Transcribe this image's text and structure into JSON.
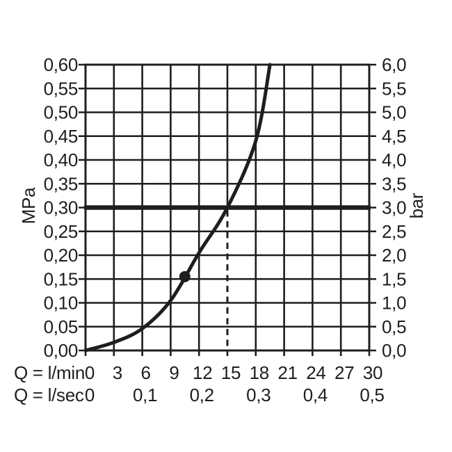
{
  "chart_data": {
    "type": "line",
    "title": "",
    "ink_color": "#1e1e1c",
    "background_color": "#ffffff",
    "grid": true,
    "legend": "none",
    "y_left": {
      "label": "MPa",
      "min": 0,
      "max": 0.6,
      "step": 0.05,
      "tick_labels_top_to_bottom": [
        "0,60",
        "0,55",
        "0,50",
        "0,45",
        "0,40",
        "0,35",
        "0,30",
        "0,25",
        "0,20",
        "0,15",
        "0,10",
        "0,05",
        "0,00"
      ]
    },
    "y_right": {
      "label": "bar",
      "min": 0,
      "max": 6,
      "step": 0.5,
      "tick_labels_top_to_bottom": [
        "6,0",
        "5,5",
        "5,0",
        "4,5",
        "4,0",
        "3,5",
        "3,0",
        "2,5",
        "2,0",
        "1,5",
        "1,0",
        "0,5",
        "0,0"
      ]
    },
    "x_lmin": {
      "label": "Q = l/min",
      "min": 0,
      "max": 30,
      "step": 3,
      "tick_labels": [
        "0",
        "3",
        "6",
        "9",
        "12",
        "15",
        "18",
        "21",
        "24",
        "27",
        "30"
      ],
      "tick_values": [
        0,
        3,
        6,
        9,
        12,
        15,
        18,
        21,
        24,
        27,
        30
      ]
    },
    "x_lsec": {
      "label": "Q = l/sec",
      "tick_labels": [
        "0",
        "0,1",
        "0,2",
        "0,3",
        "0,4",
        "0,5"
      ],
      "tick_positions_lmin": [
        0,
        6,
        12,
        18,
        24,
        30
      ]
    },
    "series": [
      {
        "name": "flow-pressure-curve",
        "q_lmin": [
          0,
          3,
          6,
          9,
          12,
          15,
          18,
          19.5
        ],
        "p_mpa": [
          0,
          0.017,
          0.046,
          0.105,
          0.205,
          0.3,
          0.44,
          0.6
        ]
      }
    ],
    "marker_point": {
      "q_lmin": 10.5,
      "p_mpa": 0.155
    },
    "reference_line": {
      "orientation": "horizontal",
      "p_mpa": 0.3,
      "p_bar": 3.0
    },
    "guide_line": {
      "orientation": "vertical",
      "style": "dashed",
      "q_lmin": 15,
      "p_mpa_from": 0,
      "p_mpa_to": 0.3
    }
  }
}
